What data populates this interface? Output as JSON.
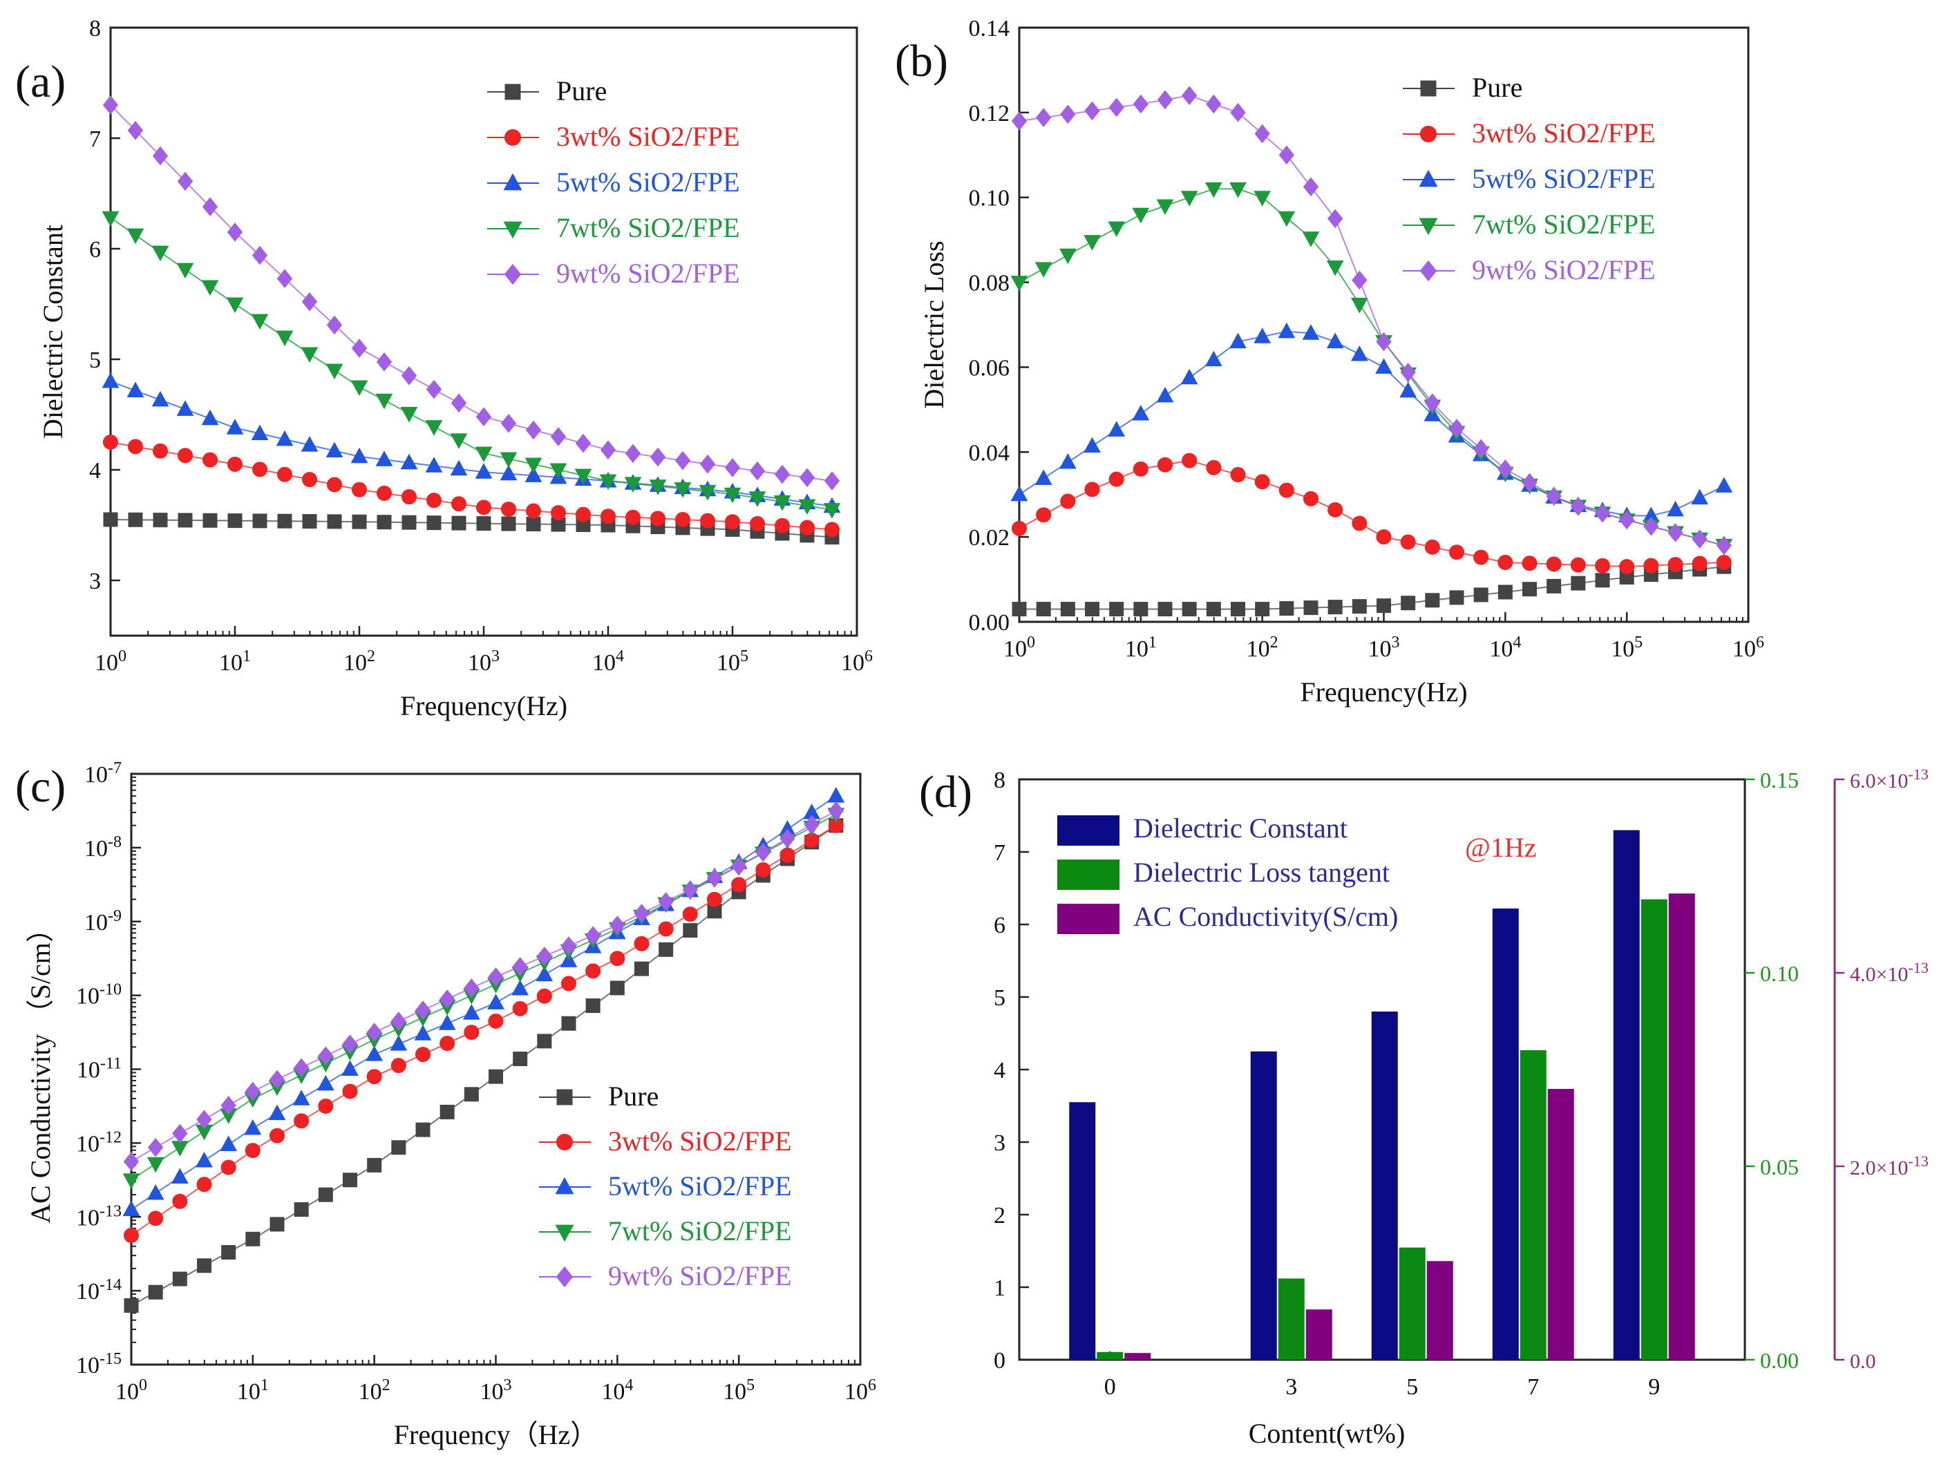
{
  "figure": {
    "panel_labels": [
      "(a)",
      "(b)",
      "(c)",
      "(d)"
    ],
    "series_colors": {
      "pure": "#444444",
      "3wt": "#ee2222",
      "5wt": "#1f55e0",
      "7wt": "#1b9a3a",
      "9wt": "#a35ee6"
    },
    "bar_colors": {
      "dc": "#0b0b85",
      "dl": "#0a8a10",
      "ac": "#800080",
      "right1": "#1a9a1a",
      "right2": "#8a2a8a"
    }
  },
  "chart_data": [
    {
      "id": "a",
      "type": "line",
      "title": "",
      "xlabel": "Frequency(Hz)",
      "ylabel": "Dielectric Constant",
      "xscale": "log",
      "xlim": [
        1,
        1000000
      ],
      "ylim": [
        2.5,
        8
      ],
      "xtick_exponents": [
        "0",
        "1",
        "2",
        "3",
        "4",
        "5",
        "6"
      ],
      "yticks": [
        "3",
        "4",
        "5",
        "6",
        "7",
        "8"
      ],
      "legend_position": "top-right",
      "series": [
        {
          "name": "Pure",
          "key": "pure",
          "marker": "square",
          "anchors": [
            [
              0,
              3.55
            ],
            [
              2,
              3.53
            ],
            [
              4,
              3.5
            ],
            [
              5,
              3.46
            ],
            [
              5.8,
              3.39
            ]
          ]
        },
        {
          "name": "3wt% SiO2/FPE",
          "key": "3wt",
          "marker": "circle",
          "anchors": [
            [
              0,
              4.25
            ],
            [
              1,
              4.05
            ],
            [
              2,
              3.82
            ],
            [
              3,
              3.66
            ],
            [
              4,
              3.58
            ],
            [
              5,
              3.53
            ],
            [
              5.8,
              3.46
            ]
          ]
        },
        {
          "name": "5wt% SiO2/FPE",
          "key": "5wt",
          "marker": "triangle-up",
          "anchors": [
            [
              0,
              4.8
            ],
            [
              1,
              4.38
            ],
            [
              2,
              4.12
            ],
            [
              3,
              3.98
            ],
            [
              4,
              3.9
            ],
            [
              5,
              3.8
            ],
            [
              5.8,
              3.67
            ]
          ]
        },
        {
          "name": "7wt% SiO2/FPE",
          "key": "7wt",
          "marker": "triangle-down",
          "anchors": [
            [
              0,
              6.28
            ],
            [
              1,
              5.5
            ],
            [
              2,
              4.75
            ],
            [
              3,
              4.15
            ],
            [
              4,
              3.9
            ],
            [
              5,
              3.78
            ],
            [
              5.8,
              3.64
            ]
          ]
        },
        {
          "name": "9wt% SiO2/FPE",
          "key": "9wt",
          "marker": "diamond",
          "anchors": [
            [
              0,
              7.3
            ],
            [
              1,
              6.15
            ],
            [
              2,
              5.1
            ],
            [
              3,
              4.48
            ],
            [
              4,
              4.18
            ],
            [
              5,
              4.02
            ],
            [
              5.8,
              3.9
            ]
          ]
        }
      ]
    },
    {
      "id": "b",
      "type": "line",
      "title": "",
      "xlabel": "Frequency(Hz)",
      "ylabel": "Dielectric Loss",
      "xscale": "log",
      "xlim": [
        1,
        1000000
      ],
      "ylim": [
        0,
        0.14
      ],
      "xtick_exponents": [
        "0",
        "1",
        "2",
        "3",
        "4",
        "5",
        "6"
      ],
      "yticks": [
        "0.00",
        "0.02",
        "0.04",
        "0.06",
        "0.08",
        "0.10",
        "0.12",
        "0.14"
      ],
      "legend_position": "top-right",
      "series": [
        {
          "name": "Pure",
          "key": "pure",
          "marker": "square",
          "anchors": [
            [
              0,
              0.003
            ],
            [
              2,
              0.003
            ],
            [
              3,
              0.0038
            ],
            [
              4,
              0.007
            ],
            [
              5,
              0.0105
            ],
            [
              5.8,
              0.013
            ]
          ]
        },
        {
          "name": "3wt% SiO2/FPE",
          "key": "3wt",
          "marker": "circle",
          "anchors": [
            [
              0,
              0.022
            ],
            [
              0.5,
              0.03
            ],
            [
              1,
              0.036
            ],
            [
              1.4,
              0.038
            ],
            [
              2,
              0.033
            ],
            [
              2.5,
              0.028
            ],
            [
              3,
              0.02
            ],
            [
              3.5,
              0.017
            ],
            [
              4,
              0.014
            ],
            [
              5,
              0.013
            ],
            [
              5.8,
              0.014
            ]
          ]
        },
        {
          "name": "5wt% SiO2/FPE",
          "key": "5wt",
          "marker": "triangle-up",
          "anchors": [
            [
              0,
              0.03
            ],
            [
              1,
              0.049
            ],
            [
              1.8,
              0.066
            ],
            [
              2.3,
              0.069
            ],
            [
              2.6,
              0.066
            ],
            [
              3,
              0.06
            ],
            [
              3.5,
              0.046
            ],
            [
              4,
              0.035
            ],
            [
              4.5,
              0.028
            ],
            [
              5,
              0.025
            ],
            [
              5.3,
              0.025
            ],
            [
              5.8,
              0.032
            ]
          ]
        },
        {
          "name": "7wt% SiO2/FPE",
          "key": "7wt",
          "marker": "triangle-down",
          "anchors": [
            [
              0,
              0.08
            ],
            [
              1,
              0.096
            ],
            [
              1.7,
              0.103
            ],
            [
              2,
              0.1
            ],
            [
              2.5,
              0.088
            ],
            [
              3,
              0.066
            ],
            [
              3.5,
              0.047
            ],
            [
              4,
              0.035
            ],
            [
              4.5,
              0.028
            ],
            [
              5,
              0.024
            ],
            [
              5.8,
              0.018
            ]
          ]
        },
        {
          "name": "9wt% SiO2/FPE",
          "key": "9wt",
          "marker": "diamond",
          "anchors": [
            [
              0,
              0.118
            ],
            [
              1,
              0.122
            ],
            [
              1.4,
              0.124
            ],
            [
              1.8,
              0.12
            ],
            [
              2.2,
              0.11
            ],
            [
              2.6,
              0.095
            ],
            [
              3,
              0.066
            ],
            [
              3.5,
              0.048
            ],
            [
              4,
              0.036
            ],
            [
              4.5,
              0.028
            ],
            [
              5,
              0.024
            ],
            [
              5.8,
              0.018
            ]
          ]
        }
      ]
    },
    {
      "id": "c",
      "type": "line",
      "title": "",
      "xlabel": "Frequency（Hz）",
      "ylabel": "AC Conductivity （S/cm）",
      "xscale": "log",
      "yscale": "log",
      "xlim": [
        1,
        1000000
      ],
      "ylim": [
        1e-15,
        1e-07
      ],
      "xtick_exponents": [
        "0",
        "1",
        "2",
        "3",
        "4",
        "5",
        "6"
      ],
      "ytick_exponents": [
        "-15",
        "-14",
        "-13",
        "-12",
        "-11",
        "-10",
        "-9",
        "-8",
        "-7"
      ],
      "legend_position": "bottom-right",
      "series": [
        {
          "name": "Pure",
          "key": "pure",
          "marker": "square",
          "anchors": [
            [
              0,
              -14.2
            ],
            [
              1,
              -13.3
            ],
            [
              2,
              -12.3
            ],
            [
              3,
              -11.1
            ],
            [
              4,
              -9.9
            ],
            [
              5,
              -8.6
            ],
            [
              5.8,
              -7.7
            ]
          ]
        },
        {
          "name": "3wt% SiO2/FPE",
          "key": "3wt",
          "marker": "circle",
          "anchors": [
            [
              0,
              -13.25
            ],
            [
              1,
              -12.1
            ],
            [
              2,
              -11.1
            ],
            [
              3,
              -10.35
            ],
            [
              4,
              -9.5
            ],
            [
              5,
              -8.5
            ],
            [
              5.8,
              -7.7
            ]
          ]
        },
        {
          "name": "5wt% SiO2/FPE",
          "key": "5wt",
          "marker": "triangle-up",
          "anchors": [
            [
              0,
              -12.9
            ],
            [
              1,
              -11.8
            ],
            [
              2,
              -10.8
            ],
            [
              3,
              -10.1
            ],
            [
              4,
              -9.15
            ],
            [
              5,
              -8.2
            ],
            [
              5.8,
              -7.3
            ]
          ]
        },
        {
          "name": "7wt% SiO2/FPE",
          "key": "7wt",
          "marker": "triangle-down",
          "anchors": [
            [
              0,
              -12.5
            ],
            [
              1,
              -11.4
            ],
            [
              2,
              -10.6
            ],
            [
              3,
              -9.85
            ],
            [
              4,
              -9.1
            ],
            [
              5,
              -8.25
            ],
            [
              5.8,
              -7.55
            ]
          ]
        },
        {
          "name": "9wt% SiO2/FPE",
          "key": "9wt",
          "marker": "diamond",
          "anchors": [
            [
              0,
              -12.25
            ],
            [
              1,
              -11.3
            ],
            [
              2,
              -10.5
            ],
            [
              3,
              -9.75
            ],
            [
              4,
              -9.05
            ],
            [
              5,
              -8.25
            ],
            [
              5.8,
              -7.5
            ]
          ]
        }
      ]
    },
    {
      "id": "d",
      "type": "bar",
      "title": "",
      "annotation": "@1Hz",
      "xlabel": "Content(wt%)",
      "categories": [
        "0",
        "3",
        "5",
        "7",
        "9"
      ],
      "category_positions": [
        0,
        3,
        5,
        7,
        9
      ],
      "legend_position": "top-left",
      "axes": {
        "left": {
          "ylim": [
            0,
            8
          ],
          "ticks": [
            "0",
            "1",
            "2",
            "3",
            "4",
            "5",
            "6",
            "7",
            "8"
          ]
        },
        "right1": {
          "ylim": [
            0,
            0.15
          ],
          "ticks": [
            "0.00",
            "0.05",
            "0.10",
            "0.15"
          ]
        },
        "right2": {
          "ylim": [
            0,
            6e-13
          ],
          "ticks": [
            {
              "mant": "0.0",
              "exp": ""
            },
            {
              "mant": "2.0×10",
              "exp": "-13"
            },
            {
              "mant": "4.0×10",
              "exp": "-13"
            },
            {
              "mant": "6.0×10",
              "exp": "-13"
            }
          ]
        }
      },
      "series": [
        {
          "name": "Dielectric Constant",
          "key": "dc",
          "axis": "left",
          "values": [
            3.55,
            4.25,
            4.8,
            6.22,
            7.3
          ]
        },
        {
          "name": "Dielectric Loss tangent",
          "key": "dl",
          "axis": "right1",
          "values": [
            0.002,
            0.021,
            0.029,
            0.08,
            0.119
          ]
        },
        {
          "name": "AC Conductivity(S/cm)",
          "key": "ac",
          "axis": "right2",
          "values": [
            7e-15,
            5.2e-14,
            1.02e-13,
            2.8e-13,
            4.82e-13
          ]
        }
      ]
    }
  ]
}
